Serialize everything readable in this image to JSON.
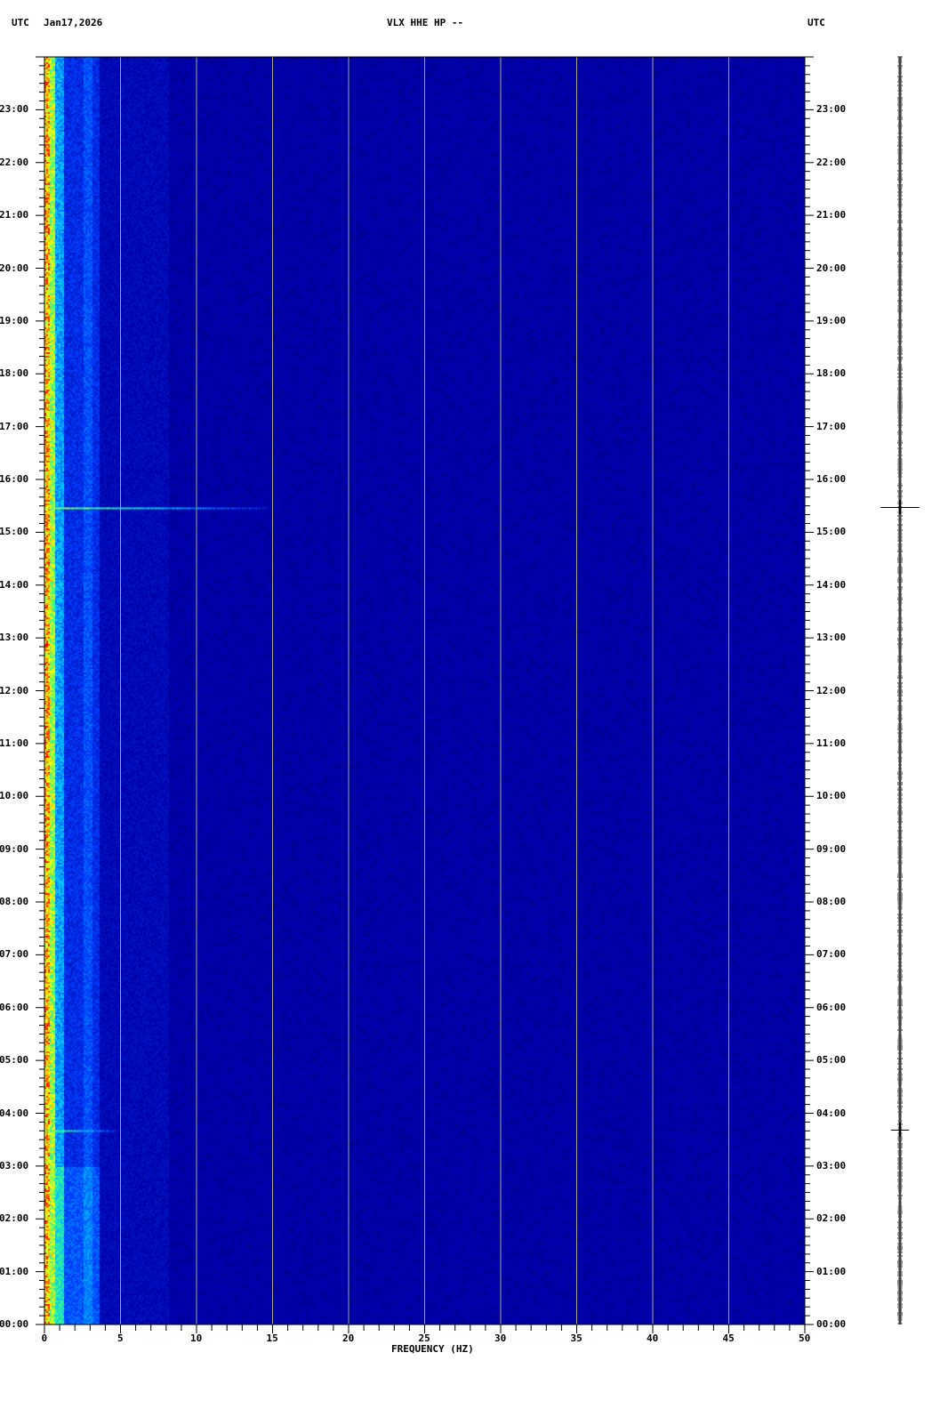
{
  "header": {
    "left_tz": "UTC",
    "date": "Jan17,2026",
    "title": "VLX HHE HP --",
    "right_tz": "UTC"
  },
  "chart_data": {
    "type": "heatmap",
    "title": "VLX HHE HP --",
    "xlabel": "FREQUENCY (HZ)",
    "ylabel": "",
    "xlim": [
      0,
      50
    ],
    "ylim_hours": [
      0,
      24
    ],
    "x_ticks": [
      "0",
      "5",
      "10",
      "15",
      "20",
      "25",
      "30",
      "35",
      "40",
      "45",
      "50"
    ],
    "x_minor_step_hz": 1,
    "y_ticks": [
      "00:00",
      "01:00",
      "02:00",
      "03:00",
      "04:00",
      "05:00",
      "06:00",
      "07:00",
      "08:00",
      "09:00",
      "10:00",
      "11:00",
      "12:00",
      "13:00",
      "14:00",
      "15:00",
      "16:00",
      "17:00",
      "18:00",
      "19:00",
      "20:00",
      "21:00",
      "22:00",
      "23:00"
    ],
    "y_minor_step_min": 10,
    "grid": true,
    "grid_color": "#a8a890",
    "background_color": "#0000a8",
    "events_utc_hours": [
      3.68,
      15.47
    ],
    "colormap": [
      "#0000a8",
      "#0040ff",
      "#00c0ff",
      "#40ff80",
      "#ffff00",
      "#ff0000"
    ]
  }
}
